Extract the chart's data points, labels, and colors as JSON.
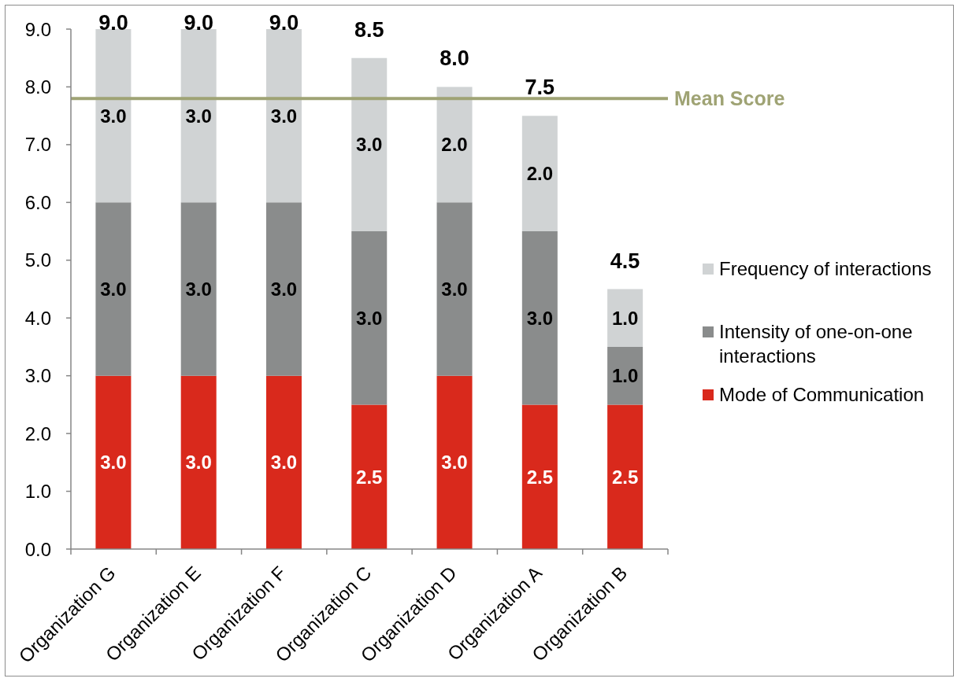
{
  "chart_data": {
    "type": "bar",
    "stacked": true,
    "categories": [
      "Organization G",
      "Organization E",
      "Organization F",
      "Organization C",
      "Organization D",
      "Organization A",
      "Organization B"
    ],
    "series": [
      {
        "name": "Mode of Communication",
        "color": "#d9291c",
        "values": [
          3,
          3,
          3,
          2.5,
          3,
          2.5,
          2.5
        ],
        "value_labels": [
          "3.0",
          "3.0",
          "3.0",
          "2.5",
          "3.0",
          "2.5",
          "2.5"
        ]
      },
      {
        "name": "Intensity of one-on-one interactions",
        "color": "#8a8c8c",
        "values": [
          3,
          3,
          3,
          3,
          3,
          3,
          1
        ],
        "value_labels": [
          "3.0",
          "3.0",
          "3.0",
          "3.0",
          "3.0",
          "3.0",
          "1.0"
        ]
      },
      {
        "name": "Frequency of interactions",
        "color": "#d0d3d4",
        "values": [
          3,
          3,
          3,
          3,
          2,
          2,
          1
        ],
        "value_labels": [
          "3.0",
          "3.0",
          "3.0",
          "3.0",
          "2.0",
          "2.0",
          "1.0"
        ]
      }
    ],
    "totals": [
      "9.0",
      "9.0",
      "9.0",
      "8.5",
      "8.0",
      "7.5",
      "4.5"
    ],
    "ylim": [
      0,
      9
    ],
    "yticks": [
      {
        "value": 0,
        "label": "0.0"
      },
      {
        "value": 1,
        "label": "1.0"
      },
      {
        "value": 2,
        "label": "2.0"
      },
      {
        "value": 3,
        "label": "3.0"
      },
      {
        "value": 4,
        "label": "4.0"
      },
      {
        "value": 5,
        "label": "5.0"
      },
      {
        "value": 6,
        "label": "6.0"
      },
      {
        "value": 7,
        "label": "7.0"
      },
      {
        "value": 8,
        "label": "8.0"
      },
      {
        "value": 9,
        "label": "9.0"
      }
    ],
    "ref_lines": [
      {
        "axis": "y",
        "value": 7.8,
        "label": "Mean Score",
        "color": "#9fa374"
      }
    ],
    "legend": "right"
  }
}
